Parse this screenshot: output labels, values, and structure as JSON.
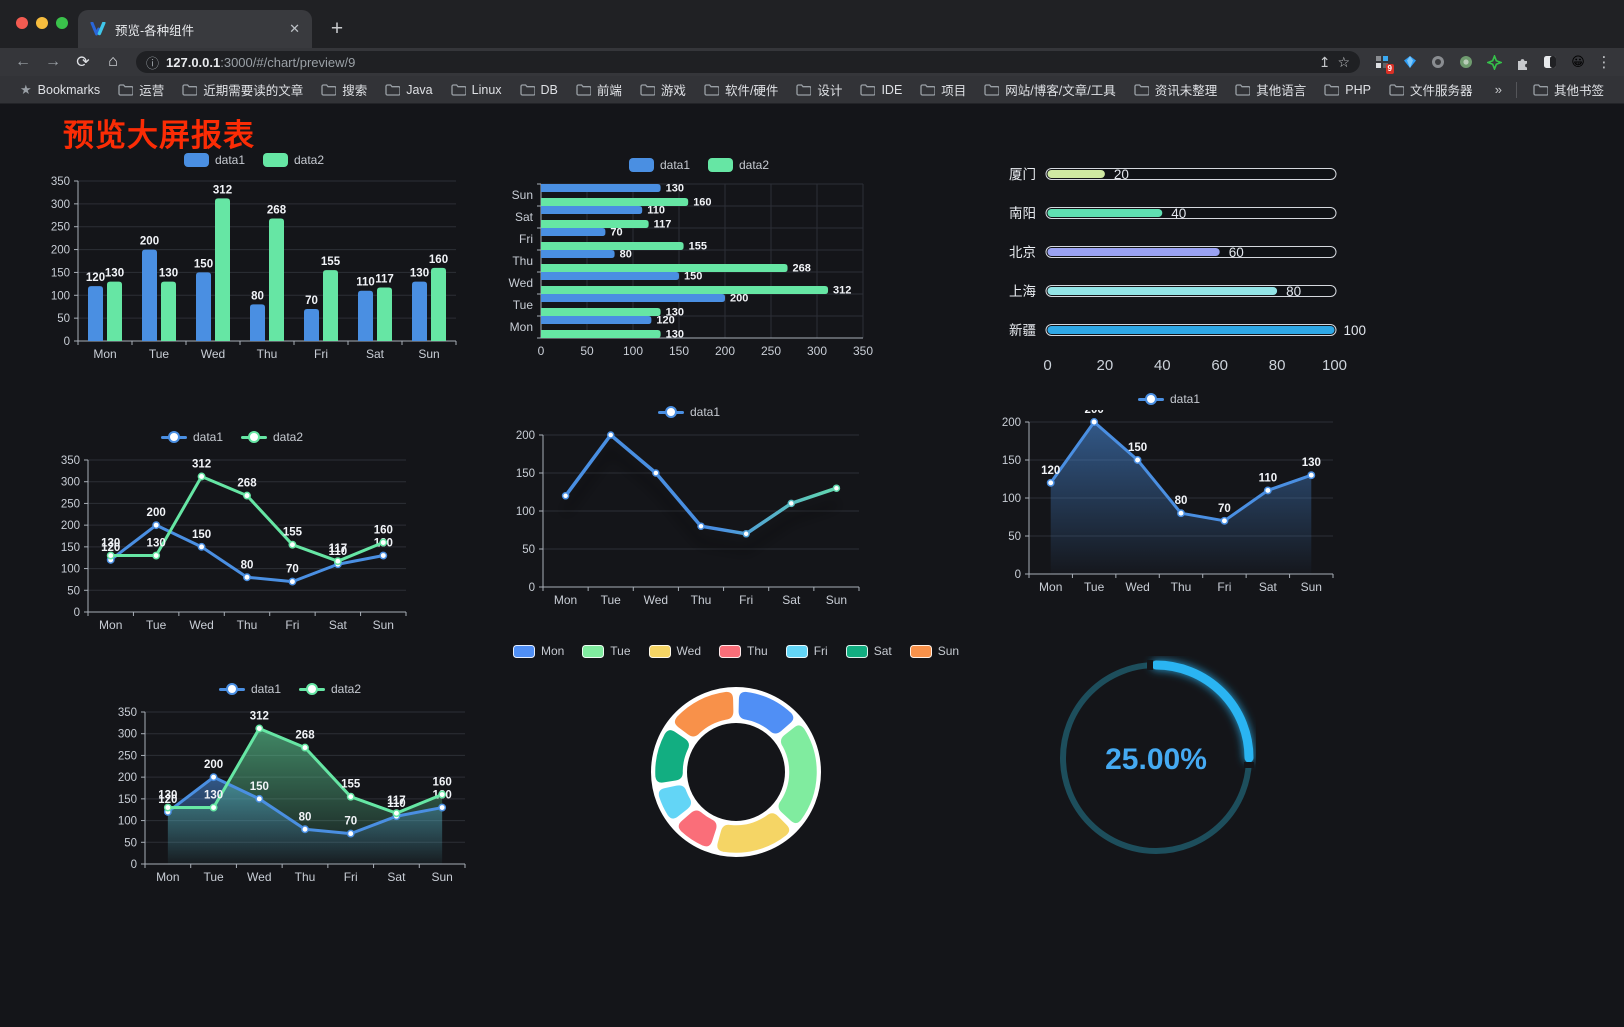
{
  "browser": {
    "tab_title": "预览-各种组件",
    "tab_close_glyph": "✕",
    "new_tab_glyph": "+",
    "url_host": "127.0.0.1",
    "url_path": ":3000/#/chart/preview/9",
    "icons": {
      "back": "←",
      "forward": "→",
      "reload": "⟳",
      "home": "⌂",
      "info": "ⓘ",
      "share": "↥",
      "star": "☆",
      "menu": "⋮",
      "bookmarks_star": "★",
      "overflow": "»",
      "extension_emoji": "😀"
    },
    "extensions_badge": "9",
    "bookmarks_label": "Bookmarks",
    "bookmarks": [
      "运营",
      "近期需要读的文章",
      "搜索",
      "Java",
      "Linux",
      "DB",
      "前端",
      "游戏",
      "软件/硬件",
      "设计",
      "IDE",
      "项目",
      "网站/博客/文章/工具",
      "资讯未整理",
      "其他语言",
      "PHP",
      "文件服务器"
    ],
    "other_bookmarks_label": "其他书签"
  },
  "page": {
    "title": "预览大屏报表"
  },
  "colors": {
    "blue": "#4a8fe2",
    "green": "#66e6a4",
    "axis": "#a9afb8",
    "grid": "#2c2f36",
    "axis_text": "#c9ced6",
    "label": "#f2f4f8",
    "legend_text": "#c6cad1",
    "background": "#141519",
    "title_red": "#fb2c05"
  },
  "chart_data": [
    {
      "id": "bar-grouped",
      "type": "bar",
      "categories": [
        "Mon",
        "Tue",
        "Wed",
        "Thu",
        "Fri",
        "Sat",
        "Sun"
      ],
      "series": [
        {
          "name": "data1",
          "color": "#4a8fe2",
          "values": [
            120,
            200,
            150,
            80,
            70,
            110,
            130
          ]
        },
        {
          "name": "data2",
          "color": "#66e6a4",
          "values": [
            130,
            130,
            312,
            268,
            155,
            117,
            160
          ]
        }
      ],
      "ylim": [
        0,
        350
      ],
      "yticks": [
        0,
        50,
        100,
        150,
        200,
        250,
        300,
        350
      ],
      "labels": true,
      "legend_position": "top"
    },
    {
      "id": "bar-horizontal",
      "type": "bar-horizontal",
      "categories": [
        "Mon",
        "Tue",
        "Wed",
        "Thu",
        "Fri",
        "Sat",
        "Sun"
      ],
      "category_display_order": "reversed-top-to-bottom",
      "series": [
        {
          "name": "data1",
          "color": "#4a8fe2",
          "values": [
            120,
            200,
            150,
            80,
            70,
            110,
            130
          ]
        },
        {
          "name": "data2",
          "color": "#66e6a4",
          "values": [
            130,
            130,
            312,
            268,
            155,
            117,
            160
          ]
        }
      ],
      "xlim": [
        0,
        350
      ],
      "xticks": [
        0,
        50,
        100,
        150,
        200,
        250,
        300,
        350
      ],
      "labels": true,
      "legend_position": "top"
    },
    {
      "id": "capsule",
      "type": "capsule-bar",
      "categories": [
        "厦门",
        "南阳",
        "北京",
        "上海",
        "新疆"
      ],
      "values": [
        20,
        40,
        60,
        80,
        100
      ],
      "colors": [
        "#cfe9a2",
        "#5fe0b2",
        "#9aa2f2",
        "#93e4e6",
        "#2fa8e6"
      ],
      "xlim": [
        0,
        100
      ],
      "xticks": [
        0,
        20,
        40,
        60,
        80,
        100
      ]
    },
    {
      "id": "line-basic",
      "type": "line",
      "categories": [
        "Mon",
        "Tue",
        "Wed",
        "Thu",
        "Fri",
        "Sat",
        "Sun"
      ],
      "series": [
        {
          "name": "data1",
          "color": "#4a8fe2",
          "values": [
            120,
            200,
            150,
            80,
            70,
            110,
            130
          ]
        },
        {
          "name": "data2",
          "color": "#66e6a4",
          "values": [
            130,
            130,
            312,
            268,
            155,
            117,
            160
          ]
        }
      ],
      "ylim": [
        0,
        350
      ],
      "yticks": [
        0,
        50,
        100,
        150,
        200,
        250,
        300,
        350
      ],
      "labels": true,
      "legend_position": "top"
    },
    {
      "id": "line-gradient",
      "type": "line-gradient",
      "categories": [
        "Mon",
        "Tue",
        "Wed",
        "Thu",
        "Fri",
        "Sat",
        "Sun"
      ],
      "series": [
        {
          "name": "data1",
          "values": [
            120,
            200,
            150,
            80,
            70,
            110,
            130
          ]
        }
      ],
      "gradient": [
        "#4a8fe2",
        "#4a8fe2",
        "#66e6a4"
      ],
      "ylim": [
        0,
        200
      ],
      "yticks": [
        0,
        50,
        100,
        150,
        200
      ],
      "labels": false,
      "legend_position": "top"
    },
    {
      "id": "line-area",
      "type": "line",
      "categories": [
        "Mon",
        "Tue",
        "Wed",
        "Thu",
        "Fri",
        "Sat",
        "Sun"
      ],
      "series": [
        {
          "name": "data1",
          "color": "#4a8fe2",
          "values": [
            120,
            200,
            150,
            80,
            70,
            110,
            130
          ],
          "area": true
        }
      ],
      "ylim": [
        0,
        200
      ],
      "yticks": [
        0,
        50,
        100,
        150,
        200
      ],
      "labels": true,
      "legend_position": "top"
    },
    {
      "id": "line-area-double",
      "type": "line",
      "categories": [
        "Mon",
        "Tue",
        "Wed",
        "Thu",
        "Fri",
        "Sat",
        "Sun"
      ],
      "series": [
        {
          "name": "data1",
          "color": "#4a8fe2",
          "values": [
            120,
            200,
            150,
            80,
            70,
            110,
            130
          ],
          "area": true
        },
        {
          "name": "data2",
          "color": "#66e6a4",
          "values": [
            130,
            130,
            312,
            268,
            155,
            117,
            160
          ],
          "area": true
        }
      ],
      "ylim": [
        0,
        350
      ],
      "yticks": [
        0,
        50,
        100,
        150,
        200,
        250,
        300,
        350
      ],
      "labels": true,
      "legend_position": "top"
    },
    {
      "id": "donut",
      "type": "pie",
      "labels": [
        "Mon",
        "Tue",
        "Wed",
        "Thu",
        "Fri",
        "Sat",
        "Sun"
      ],
      "values": [
        120,
        200,
        150,
        80,
        70,
        110,
        130
      ],
      "colors": [
        "#508ff5",
        "#80ec9f",
        "#f5d565",
        "#fa6e79",
        "#63d5f6",
        "#12ae81",
        "#f8914a"
      ],
      "legend_position": "top"
    },
    {
      "id": "gauge",
      "type": "progress-circle",
      "value": 25,
      "display": "25.00%",
      "color": "#2ab4f2",
      "track_color": "#1d4e5c",
      "text_color": "#45aaf2"
    }
  ]
}
